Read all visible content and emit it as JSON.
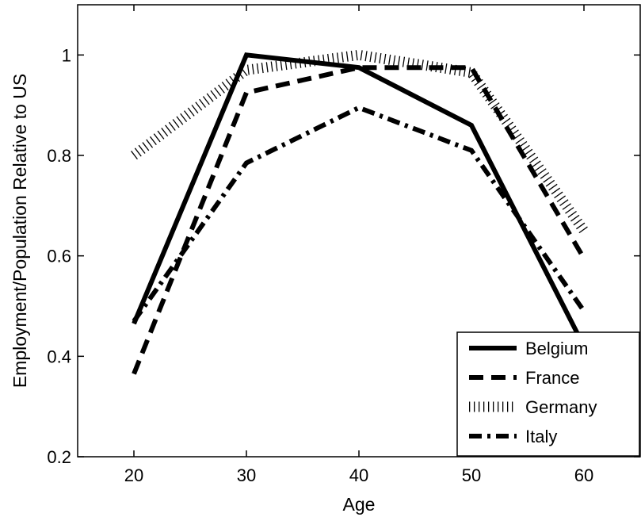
{
  "chart_data": {
    "type": "line",
    "title": "",
    "xlabel": "Age",
    "ylabel": "Employment/Population Relative to US",
    "x": [
      20,
      30,
      40,
      50,
      60
    ],
    "xlim": [
      15,
      65
    ],
    "ylim": [
      0.2,
      1.1
    ],
    "xticks": [
      20,
      30,
      40,
      50,
      60
    ],
    "yticks": [
      0.2,
      0.4,
      0.6,
      0.8,
      1
    ],
    "xtick_labels": [
      "20",
      "30",
      "40",
      "50",
      "60"
    ],
    "ytick_labels": [
      "0.2",
      "0.4",
      "0.6",
      "0.8",
      "1"
    ],
    "grid": false,
    "legend_position": "bottom-right",
    "series": [
      {
        "name": "Belgium",
        "values": [
          0.465,
          1.0,
          0.975,
          0.86,
          0.42
        ],
        "style": "solid"
      },
      {
        "name": "France",
        "values": [
          0.365,
          0.925,
          0.975,
          0.975,
          0.595
        ],
        "style": "dashed"
      },
      {
        "name": "Germany",
        "values": [
          0.8,
          0.97,
          1.0,
          0.965,
          0.65
        ],
        "style": "dotted"
      },
      {
        "name": "Italy",
        "values": [
          0.47,
          0.785,
          0.895,
          0.81,
          0.49
        ],
        "style": "dashdot"
      }
    ]
  }
}
